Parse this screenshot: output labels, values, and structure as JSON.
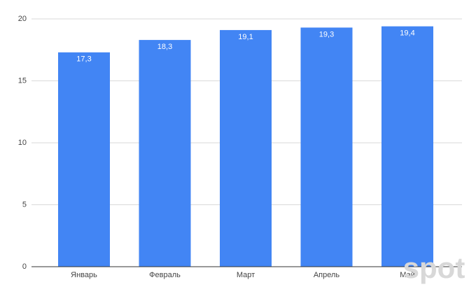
{
  "chart_data": {
    "type": "bar",
    "categories": [
      "Январь",
      "Февраль",
      "Март",
      "Апрель",
      "Май"
    ],
    "values": [
      17.3,
      18.3,
      19.1,
      19.3,
      19.4
    ],
    "value_labels": [
      "17,3",
      "18,3",
      "19,1",
      "19,3",
      "19,4"
    ],
    "color": "#4285f4",
    "ylim": [
      0,
      20
    ],
    "yticks": [
      0,
      5,
      10,
      15,
      20
    ],
    "grid": true,
    "watermark": "spot"
  }
}
